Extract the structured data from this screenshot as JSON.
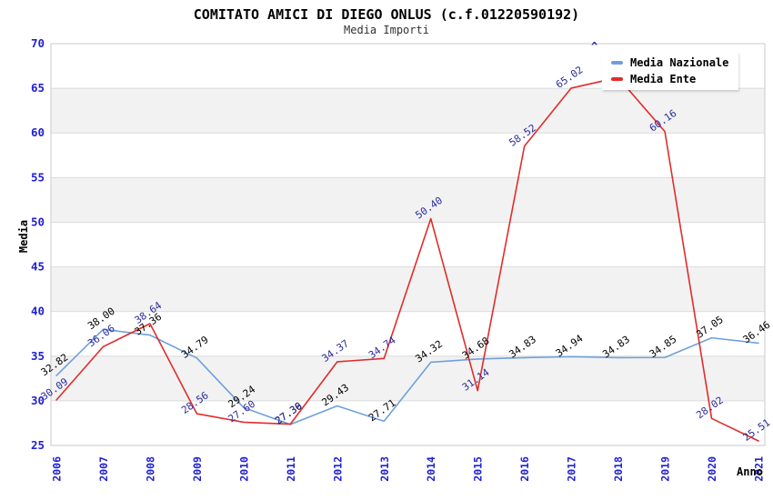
{
  "axes": {
    "tick_color": "#2121d4",
    "grid_color": "#dcdcdc",
    "border_color": "#c9c9c9"
  },
  "decorations": {
    "occluded_label_tip": "^"
  },
  "chart_data": {
    "type": "line",
    "title": "COMITATO AMICI DI DIEGO ONLUS (c.f.01220590192)",
    "subtitle": "Media Importi",
    "xlabel": "Anno",
    "ylabel": "Media",
    "ylim": [
      25,
      70
    ],
    "ytick_step": 5,
    "grid": "horizontal-bands",
    "band_fill": "#f2f2f2",
    "legend_position": "top-right",
    "categories": [
      "2006",
      "2007",
      "2008",
      "2009",
      "2010",
      "2011",
      "2012",
      "2013",
      "2014",
      "2015",
      "2016",
      "2017",
      "2018",
      "2019",
      "2020",
      "2021"
    ],
    "series": [
      {
        "name": "Media Nazionale",
        "color": "#6fa0dd",
        "label_color": "#000000",
        "values": [
          32.82,
          38.0,
          37.36,
          34.79,
          29.24,
          27.36,
          29.43,
          27.71,
          34.32,
          34.68,
          34.83,
          34.94,
          34.83,
          34.85,
          37.05,
          36.46
        ],
        "point_labels": [
          "32.82",
          "38.00",
          "37.36",
          "34.79",
          "29.24",
          "27.36",
          "29.43",
          "27.71",
          "34.32",
          "34.68",
          "34.83",
          "34.94",
          "34.83",
          "34.85",
          "37.05",
          "36.46"
        ]
      },
      {
        "name": "Media Ente",
        "color": "#e02c2c",
        "label_color": "#2b2b9c",
        "values": [
          30.09,
          36.06,
          38.64,
          28.56,
          27.6,
          27.39,
          34.37,
          34.74,
          50.4,
          31.14,
          58.52,
          65.02,
          66.2,
          60.16,
          28.02,
          25.51
        ],
        "point_labels": [
          "30.09",
          "36.06",
          "38.64",
          "28.56",
          "27.60",
          "27.39",
          "34.37",
          "34.74",
          "50.40",
          "31.14",
          "58.52",
          "65.02",
          "",
          "60.16",
          "28.02",
          "25.51"
        ]
      }
    ]
  }
}
